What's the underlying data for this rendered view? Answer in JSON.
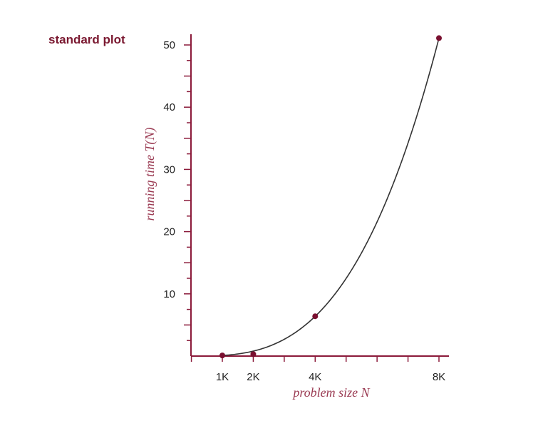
{
  "chart_data": {
    "type": "line",
    "title": "standard plot",
    "xlabel": "problem size N",
    "ylabel": "running time T(N)",
    "x_tick_labels": [
      "1K",
      "2K",
      "4K",
      "8K"
    ],
    "x_tick_values": [
      1000,
      2000,
      4000,
      8000
    ],
    "y_tick_labels": [
      "10",
      "20",
      "30",
      "40",
      "50"
    ],
    "y_tick_values": [
      10,
      20,
      30,
      40,
      50
    ],
    "xlim": [
      0,
      8000
    ],
    "ylim": [
      0,
      50
    ],
    "grid": false,
    "series": [
      {
        "points": [
          {
            "x": 1000,
            "y": 0.1
          },
          {
            "x": 2000,
            "y": 0.3
          },
          {
            "x": 4000,
            "y": 6.4
          },
          {
            "x": 8000,
            "y": 51.1
          }
        ]
      }
    ],
    "colors": {
      "axis": "#8b1a3a",
      "point": "#7a1030",
      "curve": "#333333",
      "title": "#7a1830",
      "axis_label": "#9a3a52"
    }
  }
}
